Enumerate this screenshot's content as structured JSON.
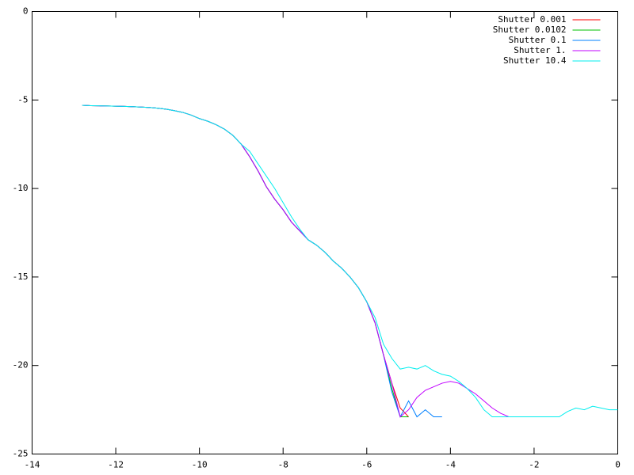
{
  "chart_data": {
    "type": "line",
    "xlim": [
      -14,
      0
    ],
    "ylim": [
      -25,
      0
    ],
    "xticks": [
      -14,
      -12,
      -10,
      -8,
      -6,
      -4,
      -2,
      0
    ],
    "yticks": [
      -25,
      -20,
      -15,
      -10,
      -5,
      0
    ],
    "legend": "top-right",
    "x": [
      -12.8,
      -12.6,
      -12.4,
      -12.2,
      -12.0,
      -11.8,
      -11.6,
      -11.4,
      -11.2,
      -11.0,
      -10.8,
      -10.6,
      -10.4,
      -10.2,
      -10.0,
      -9.8,
      -9.6,
      -9.4,
      -9.2,
      -9.0,
      -8.8,
      -8.6,
      -8.4,
      -8.2,
      -8.0,
      -7.8,
      -7.6,
      -7.4,
      -7.2,
      -7.0,
      -6.8,
      -6.6,
      -6.4,
      -6.2,
      -6.0,
      -5.8,
      -5.6,
      -5.4,
      -5.2,
      -5.0,
      -4.8,
      -4.6,
      -4.4,
      -4.2,
      -4.0,
      -3.8,
      -3.6,
      -3.4,
      -3.2,
      -3.0,
      -2.8,
      -2.6,
      -2.4,
      -2.2,
      -2.0,
      -1.8,
      -1.6,
      -1.4,
      -1.2,
      -1.0,
      -0.8,
      -0.6,
      -0.4,
      -0.2,
      0
    ],
    "series": [
      {
        "name": "Shutter 0.001",
        "color": "#ff0000",
        "values": [
          -5.3,
          -5.32,
          -5.33,
          -5.34,
          -5.35,
          -5.36,
          -5.38,
          -5.4,
          -5.42,
          -5.46,
          -5.52,
          -5.6,
          -5.7,
          -5.85,
          -6.05,
          -6.2,
          -6.4,
          -6.65,
          -7.0,
          -7.5,
          -8.2,
          -9.0,
          -9.9,
          -10.6,
          -11.2,
          -11.9,
          -12.4,
          -12.9,
          -13.2,
          -13.6,
          -14.1,
          -14.5,
          -15.0,
          -15.6,
          -16.4,
          -17.6,
          -19.4,
          -21.0,
          -22.4,
          -22.9,
          null,
          null,
          null,
          null,
          null,
          null,
          null,
          null,
          null,
          null,
          null,
          null,
          null,
          null,
          null,
          null,
          null,
          null,
          null,
          null,
          null,
          null,
          null,
          null,
          null
        ]
      },
      {
        "name": "Shutter 0.0102",
        "color": "#00c000",
        "values": [
          -5.3,
          -5.32,
          -5.33,
          -5.34,
          -5.35,
          -5.36,
          -5.38,
          -5.4,
          -5.42,
          -5.46,
          -5.52,
          -5.6,
          -5.7,
          -5.85,
          -6.05,
          -6.2,
          -6.4,
          -6.65,
          -7.0,
          -7.5,
          -8.2,
          -9.0,
          -9.9,
          -10.6,
          -11.2,
          -11.9,
          -12.4,
          -12.9,
          -13.2,
          -13.6,
          -14.1,
          -14.5,
          -15.0,
          -15.6,
          -16.4,
          -17.6,
          -19.4,
          -21.3,
          -22.9,
          -22.9,
          null,
          null,
          null,
          null,
          null,
          null,
          null,
          null,
          null,
          null,
          null,
          null,
          null,
          null,
          null,
          null,
          null,
          null,
          null,
          null,
          null,
          null,
          null,
          null,
          null
        ]
      },
      {
        "name": "Shutter 0.1",
        "color": "#0080ff",
        "values": [
          -5.3,
          -5.32,
          -5.33,
          -5.34,
          -5.35,
          -5.36,
          -5.38,
          -5.4,
          -5.42,
          -5.46,
          -5.52,
          -5.6,
          -5.7,
          -5.85,
          -6.05,
          -6.2,
          -6.4,
          -6.65,
          -7.0,
          -7.5,
          -8.2,
          -9.0,
          -9.9,
          -10.6,
          -11.2,
          -11.9,
          -12.4,
          -12.9,
          -13.2,
          -13.6,
          -14.1,
          -14.5,
          -15.0,
          -15.6,
          -16.4,
          -17.6,
          -19.4,
          -21.5,
          -22.9,
          -22.0,
          -22.9,
          -22.5,
          -22.9,
          -22.9,
          null,
          null,
          null,
          null,
          null,
          null,
          null,
          null,
          null,
          null,
          null,
          null,
          null,
          null,
          null,
          null,
          null,
          null,
          null,
          null,
          null
        ]
      },
      {
        "name": "Shutter 1.",
        "color": "#c000ff",
        "values": [
          -5.3,
          -5.32,
          -5.33,
          -5.34,
          -5.35,
          -5.36,
          -5.38,
          -5.4,
          -5.42,
          -5.46,
          -5.52,
          -5.6,
          -5.7,
          -5.85,
          -6.05,
          -6.2,
          -6.4,
          -6.65,
          -7.0,
          -7.5,
          -8.2,
          -9.0,
          -9.9,
          -10.6,
          -11.2,
          -11.9,
          -12.4,
          -12.9,
          -13.2,
          -13.6,
          -14.1,
          -14.5,
          -15.0,
          -15.6,
          -16.4,
          -17.6,
          -19.4,
          -21.0,
          -22.9,
          -22.5,
          -21.8,
          -21.4,
          -21.2,
          -21.0,
          -20.9,
          -21.0,
          -21.3,
          -21.6,
          -22.0,
          -22.4,
          -22.7,
          -22.9,
          -22.9,
          null,
          null,
          null,
          null,
          null,
          null,
          null,
          null,
          null,
          null,
          null,
          null
        ]
      },
      {
        "name": "Shutter 10.4",
        "color": "#00eeee",
        "values": [
          -5.3,
          -5.32,
          -5.33,
          -5.34,
          -5.35,
          -5.36,
          -5.38,
          -5.4,
          -5.42,
          -5.46,
          -5.52,
          -5.6,
          -5.7,
          -5.85,
          -6.05,
          -6.2,
          -6.4,
          -6.65,
          -7.0,
          -7.5,
          -7.9,
          -8.6,
          -9.3,
          -10.0,
          -10.8,
          -11.6,
          -12.3,
          -12.9,
          -13.2,
          -13.6,
          -14.1,
          -14.5,
          -15.0,
          -15.6,
          -16.4,
          -17.3,
          -18.8,
          -19.6,
          -20.2,
          -20.1,
          -20.2,
          -20.0,
          -20.3,
          -20.5,
          -20.6,
          -20.9,
          -21.3,
          -21.8,
          -22.5,
          -22.9,
          -22.9,
          -22.9,
          -22.9,
          -22.9,
          -22.9,
          -22.9,
          -22.9,
          -22.9,
          -22.6,
          -22.4,
          -22.5,
          -22.3,
          -22.4,
          -22.5,
          -22.5
        ]
      }
    ]
  }
}
